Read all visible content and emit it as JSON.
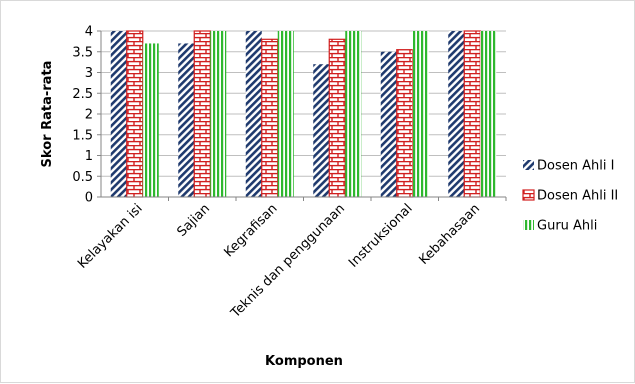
{
  "chart_data": {
    "type": "bar",
    "title": "",
    "xlabel": "Komponen",
    "ylabel": "Skor Rata-rata",
    "ylim": [
      0,
      4
    ],
    "yticks": [
      "0",
      "0.5",
      "1",
      "1.5",
      "2",
      "2.5",
      "3",
      "3.5",
      "4"
    ],
    "grid": true,
    "legend_position": "right",
    "categories": [
      "Kelayakan isi",
      "Sajian",
      "Kegrafisan",
      "Teknis dan penggunaan",
      "Instruksional",
      "Kebahasaan"
    ],
    "series": [
      {
        "name": "Dosen Ahli I",
        "values": [
          4.0,
          3.7,
          4.0,
          3.2,
          3.5,
          4.0
        ],
        "color": "#1f3a6e",
        "pattern": "diagonal-stripes"
      },
      {
        "name": "Dosen Ahli II",
        "values": [
          4.0,
          4.0,
          3.8,
          3.8,
          3.55,
          4.0
        ],
        "color": "#d11f1f",
        "pattern": "brick"
      },
      {
        "name": "Guru Ahli",
        "values": [
          3.7,
          4.0,
          4.0,
          4.0,
          4.0,
          4.0
        ],
        "color": "#2eb82e",
        "pattern": "vertical-stripes"
      }
    ]
  }
}
